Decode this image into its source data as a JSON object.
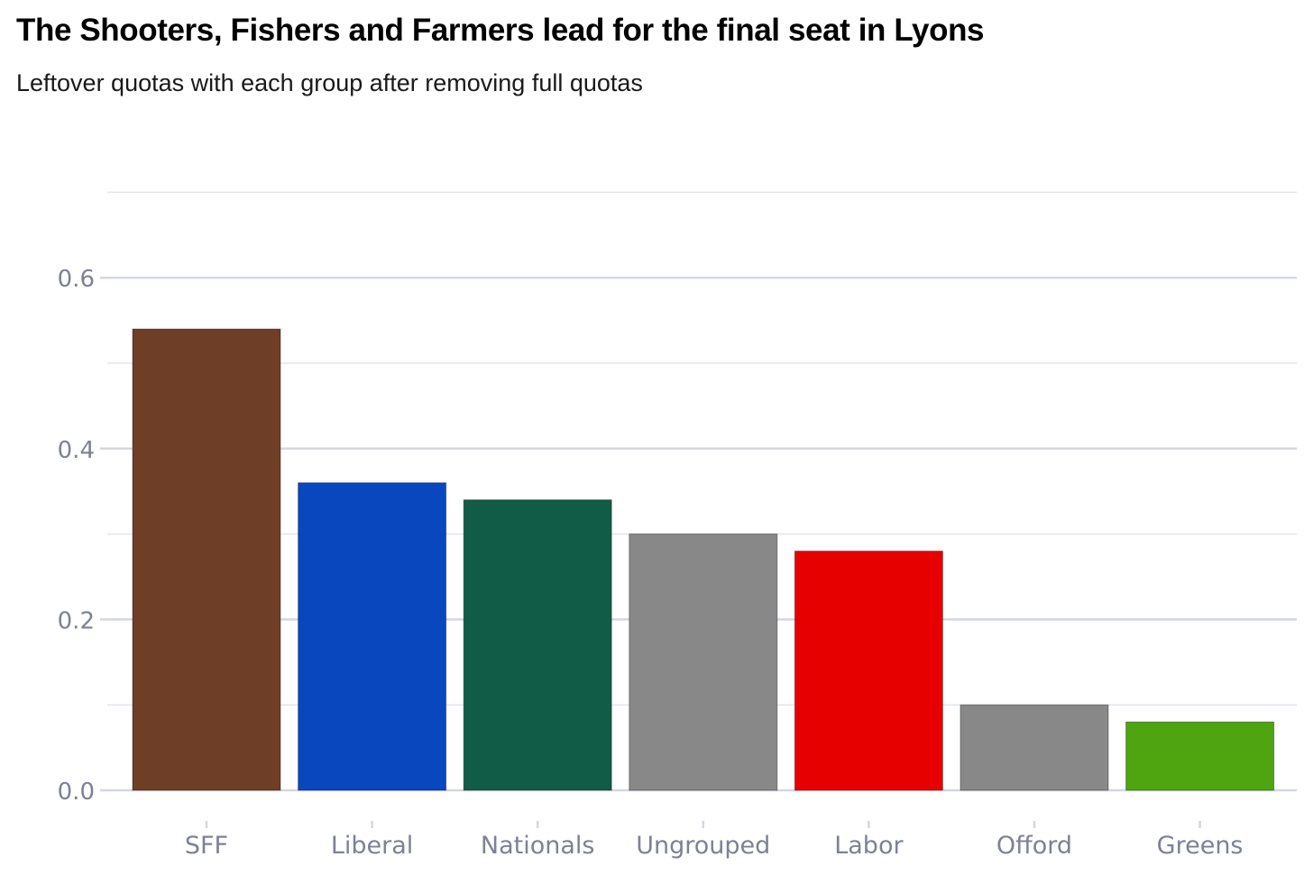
{
  "chart_data": {
    "type": "bar",
    "title": "The Shooters, Fishers and Farmers lead for the final seat in Lyons",
    "subtitle": "Leftover quotas with each group after removing full quotas",
    "categories": [
      "SFF",
      "Liberal",
      "Nationals",
      "Ungrouped",
      "Labor",
      "Offord",
      "Greens"
    ],
    "values": [
      0.54,
      0.36,
      0.34,
      0.3,
      0.28,
      0.1,
      0.08
    ],
    "colors": [
      "#6e3e26",
      "#0847bd",
      "#115c46",
      "#888888",
      "#e60000",
      "#888888",
      "#4ea50f"
    ],
    "y_ticks": [
      0,
      0.2,
      0.4,
      0.6
    ],
    "y_tick_labels": [
      "0.0",
      "0.2",
      "0.4",
      "0.6"
    ],
    "ylim": [
      0,
      0.7
    ],
    "xlabel": "",
    "ylabel": "",
    "grid": true,
    "legend": "none"
  }
}
